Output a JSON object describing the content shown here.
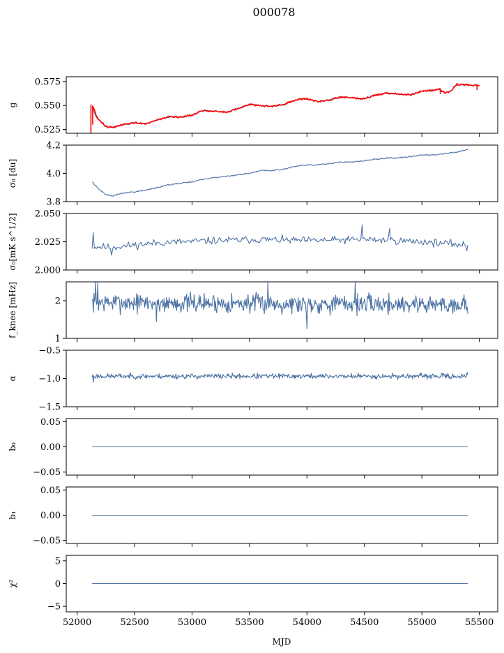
{
  "chart_data": {
    "type": "line",
    "title": "000078",
    "xlabel": "MJD",
    "x_ticks": [
      "52000",
      "52500",
      "53000",
      "53500",
      "54000",
      "54500",
      "55000",
      "55500"
    ],
    "xlim": [
      51905,
      55660
    ],
    "x_range": [
      52130,
      55400
    ],
    "colors": {
      "primary": "#4c72a4",
      "secondary": "#ff0000"
    },
    "panels": [
      {
        "ylabel": "g",
        "ylim": [
          0.521,
          0.58
        ],
        "yticks": [
          0.525,
          0.55,
          0.575
        ],
        "ytick_labels": [
          "0.525",
          "0.550",
          "0.575"
        ],
        "series": [
          {
            "style": "trend",
            "color": "#4c72a4",
            "x": [
              52130,
              52170,
              52250,
              52300,
              52400,
              52500,
              52600,
              52700,
              52800,
              52900,
              53000,
              53100,
              53200,
              53300,
              53400,
              53500,
              53600,
              53700,
              53800,
              53900,
              54000,
              54100,
              54200,
              54300,
              54400,
              54500,
              54600,
              54700,
              54800,
              54900,
              55000,
              55100,
              55150,
              55200,
              55250,
              55300,
              55400
            ],
            "y": [
              0.548,
              0.537,
              0.528,
              0.527,
              0.53,
              0.532,
              0.531,
              0.535,
              0.538,
              0.538,
              0.54,
              0.545,
              0.544,
              0.543,
              0.547,
              0.551,
              0.55,
              0.549,
              0.551,
              0.556,
              0.557,
              0.554,
              0.556,
              0.559,
              0.558,
              0.557,
              0.561,
              0.563,
              0.562,
              0.561,
              0.565,
              0.566,
              0.567,
              0.563,
              0.565,
              0.571,
              0.572
            ],
            "noise": 0.0004
          },
          {
            "style": "trend",
            "color": "#ff0000",
            "x": [
              52140,
              52170,
              52250,
              52300,
              52400,
              52500,
              52600,
              52700,
              52800,
              52900,
              53000,
              53100,
              53200,
              53300,
              53400,
              53500,
              53600,
              53700,
              53800,
              53900,
              54000,
              54100,
              54200,
              54300,
              54400,
              54500,
              54600,
              54700,
              54800,
              54900,
              55000,
              55100,
              55150,
              55200,
              55250,
              55300,
              55500
            ],
            "y": [
              0.549,
              0.538,
              0.528,
              0.527,
              0.53,
              0.532,
              0.531,
              0.535,
              0.538,
              0.538,
              0.54,
              0.545,
              0.544,
              0.543,
              0.547,
              0.551,
              0.55,
              0.549,
              0.551,
              0.556,
              0.557,
              0.554,
              0.556,
              0.559,
              0.558,
              0.557,
              0.561,
              0.563,
              0.562,
              0.561,
              0.565,
              0.566,
              0.567,
              0.563,
              0.565,
              0.572,
              0.571
            ],
            "noise": 0.0009,
            "spikes": [
              [
                52120,
                0.521,
                0.551
              ],
              [
                52135,
                0.53,
                0.55
              ],
              [
                55160,
                0.562,
                0.568
              ],
              [
                55480,
                0.566,
                0.572
              ]
            ]
          }
        ]
      },
      {
        "ylabel": "σ₀ [du]",
        "ylim": [
          3.8,
          4.2
        ],
        "yticks": [
          3.8,
          4.0,
          4.2
        ],
        "ytick_labels": [
          "3.8",
          "4.0",
          "4.2"
        ],
        "series": [
          {
            "style": "trend",
            "color": "#4c72a4",
            "x": [
              52130,
              52200,
              52250,
              52300,
              52400,
              52500,
              52600,
              52700,
              52800,
              52900,
              53000,
              53100,
              53200,
              53300,
              53400,
              53500,
              53600,
              53700,
              53800,
              53900,
              54000,
              54100,
              54200,
              54300,
              54400,
              54500,
              54600,
              54700,
              54800,
              54900,
              55000,
              55100,
              55200,
              55300,
              55400
            ],
            "y": [
              3.94,
              3.88,
              3.85,
              3.84,
              3.86,
              3.87,
              3.88,
              3.9,
              3.92,
              3.93,
              3.94,
              3.96,
              3.97,
              3.98,
              3.99,
              4.0,
              4.02,
              4.02,
              4.03,
              4.05,
              4.06,
              4.06,
              4.07,
              4.08,
              4.08,
              4.09,
              4.1,
              4.11,
              4.11,
              4.12,
              4.13,
              4.13,
              4.14,
              4.15,
              4.17
            ],
            "noise": 0.004
          }
        ]
      },
      {
        "ylabel": "σ₀[mK s^1/2]",
        "ylim": [
          2.0,
          2.05
        ],
        "yticks": [
          2.0,
          2.025,
          2.05
        ],
        "ytick_labels": [
          "2.000",
          "2.025",
          "2.050"
        ],
        "series": [
          {
            "style": "noise",
            "color": "#4c72a4",
            "mean": [
              [
                52130,
                2.021
              ],
              [
                52300,
                2.02
              ],
              [
                52700,
                2.024
              ],
              [
                53200,
                2.026
              ],
              [
                53600,
                2.027
              ],
              [
                54000,
                2.026
              ],
              [
                54500,
                2.027
              ],
              [
                55000,
                2.025
              ],
              [
                55400,
                2.022
              ]
            ],
            "amp": 0.0028,
            "n": 330,
            "seed": 11,
            "points": [
              [
                52140,
                2.033
              ],
              [
                52170,
                2.019
              ],
              [
                52300,
                2.013
              ],
              [
                54480,
                2.04
              ],
              [
                54720,
                2.037
              ],
              [
                55390,
                2.017
              ]
            ]
          }
        ]
      },
      {
        "ylabel": "f_knee [mHz]",
        "ylim": [
          1.0,
          2.5
        ],
        "yticks": [
          1,
          2
        ],
        "ytick_labels": [
          "1",
          "2"
        ],
        "series": [
          {
            "style": "noise",
            "color": "#4c72a4",
            "mean": [
              [
                52130,
                1.95
              ],
              [
                55400,
                1.9
              ]
            ],
            "amp": 0.22,
            "n": 600,
            "seed": 7,
            "points": [
              [
                52160,
                2.55
              ],
              [
                52180,
                2.5
              ],
              [
                53660,
                2.5
              ],
              [
                54000,
                1.25
              ],
              [
                54420,
                2.5
              ],
              [
                52690,
                1.45
              ]
            ]
          }
        ]
      },
      {
        "ylabel": "α",
        "ylim": [
          -1.5,
          -0.5
        ],
        "yticks": [
          -1.5,
          -1.0,
          -0.5
        ],
        "ytick_labels": [
          "−1.5",
          "−1.0",
          "−0.5"
        ],
        "series": [
          {
            "style": "noise",
            "color": "#4c72a4",
            "mean": [
              [
                52130,
                -0.96
              ],
              [
                55400,
                -0.96
              ]
            ],
            "amp": 0.04,
            "n": 600,
            "seed": 23,
            "points": [
              [
                52140,
                -1.07
              ],
              [
                55400,
                -0.88
              ]
            ]
          }
        ]
      },
      {
        "ylabel": "b₀",
        "ylim": [
          -0.056,
          0.056
        ],
        "yticks": [
          -0.05,
          0.0,
          0.05
        ],
        "ytick_labels": [
          "−0.05",
          "0.00",
          "0.05"
        ],
        "series": [
          {
            "style": "flat",
            "color": "#4c72a4",
            "value": 0.0
          }
        ]
      },
      {
        "ylabel": "b₁",
        "ylim": [
          -0.056,
          0.056
        ],
        "yticks": [
          -0.05,
          0.0,
          0.05
        ],
        "ytick_labels": [
          "−0.05",
          "0.00",
          "0.05"
        ],
        "series": [
          {
            "style": "flat",
            "color": "#4c72a4",
            "value": 0.0
          }
        ]
      },
      {
        "ylabel": "χ²",
        "ylim": [
          -6.2,
          6.2
        ],
        "yticks": [
          -5,
          0,
          5
        ],
        "ytick_labels": [
          "−5",
          "0",
          "5"
        ],
        "series": [
          {
            "style": "flat",
            "color": "#4c72a4",
            "value": 0.0
          }
        ]
      }
    ]
  }
}
